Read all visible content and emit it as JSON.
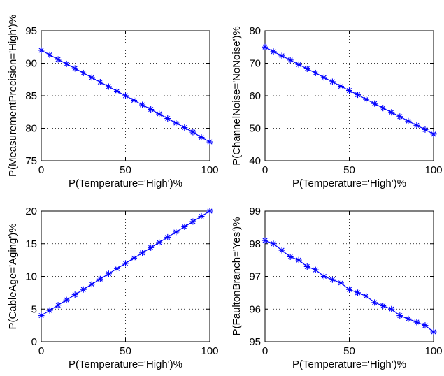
{
  "colors": {
    "series": "#0000ff",
    "axis": "#000000"
  },
  "chart_data": [
    {
      "type": "line",
      "xlabel": "P(Temperature='High')%",
      "ylabel": "P(MeasurementPrecision='High')%",
      "xlim": [
        0,
        100
      ],
      "ylim": [
        75,
        95
      ],
      "xticks": [
        0,
        50,
        100
      ],
      "yticks": [
        75,
        80,
        85,
        90,
        95
      ],
      "grid": true,
      "marker": "asterisk",
      "series": [
        {
          "x": [
            0,
            5,
            10,
            15,
            20,
            25,
            30,
            35,
            40,
            45,
            50,
            55,
            60,
            65,
            70,
            75,
            80,
            85,
            90,
            95,
            100
          ],
          "y": [
            92.0,
            91.3,
            90.6,
            89.9,
            89.2,
            88.5,
            87.8,
            87.1,
            86.4,
            85.7,
            85.0,
            84.3,
            83.6,
            82.9,
            82.2,
            81.5,
            80.8,
            80.1,
            79.4,
            78.6,
            77.9
          ]
        }
      ]
    },
    {
      "type": "line",
      "xlabel": "P(Temperature='High')%",
      "ylabel": "P(ChannelNoise='NoNoise')%",
      "xlim": [
        0,
        100
      ],
      "ylim": [
        40,
        80
      ],
      "xticks": [
        0,
        50,
        100
      ],
      "yticks": [
        40,
        50,
        60,
        70,
        80
      ],
      "grid": true,
      "marker": "asterisk",
      "series": [
        {
          "x": [
            0,
            5,
            10,
            15,
            20,
            25,
            30,
            35,
            40,
            45,
            50,
            55,
            60,
            65,
            70,
            75,
            80,
            85,
            90,
            95,
            100
          ],
          "y": [
            75.0,
            73.6,
            72.3,
            71.0,
            69.6,
            68.3,
            67.0,
            65.6,
            64.3,
            62.9,
            61.6,
            60.3,
            58.9,
            57.6,
            56.2,
            54.9,
            53.6,
            52.2,
            50.9,
            49.6,
            48.2
          ]
        }
      ]
    },
    {
      "type": "line",
      "xlabel": "P(Temperature='High')%",
      "ylabel": "P(CableAge='Aging')%",
      "xlim": [
        0,
        100
      ],
      "ylim": [
        0,
        20
      ],
      "xticks": [
        0,
        50,
        100
      ],
      "yticks": [
        0,
        5,
        10,
        15,
        20
      ],
      "grid": true,
      "marker": "asterisk",
      "series": [
        {
          "x": [
            0,
            5,
            10,
            15,
            20,
            25,
            30,
            35,
            40,
            45,
            50,
            55,
            60,
            65,
            70,
            75,
            80,
            85,
            90,
            95,
            100
          ],
          "y": [
            4.0,
            4.8,
            5.6,
            6.4,
            7.2,
            8.0,
            8.8,
            9.6,
            10.4,
            11.2,
            12.0,
            12.8,
            13.6,
            14.4,
            15.2,
            16.0,
            16.8,
            17.6,
            18.4,
            19.2,
            20.0
          ]
        }
      ]
    },
    {
      "type": "line",
      "xlabel": "P(Temperature='High')%",
      "ylabel": "P(FaultonBranch='Yes')%",
      "xlim": [
        0,
        100
      ],
      "ylim": [
        95,
        99
      ],
      "xticks": [
        0,
        50,
        100
      ],
      "yticks": [
        95,
        96,
        97,
        98,
        99
      ],
      "grid": true,
      "marker": "asterisk",
      "series": [
        {
          "x": [
            0,
            5,
            10,
            15,
            20,
            25,
            30,
            35,
            40,
            45,
            50,
            55,
            60,
            65,
            70,
            75,
            80,
            85,
            90,
            95,
            100
          ],
          "y": [
            98.1,
            98.0,
            97.8,
            97.6,
            97.5,
            97.3,
            97.2,
            97.0,
            96.9,
            96.8,
            96.6,
            96.5,
            96.4,
            96.2,
            96.1,
            96.0,
            95.8,
            95.7,
            95.6,
            95.5,
            95.3
          ]
        }
      ]
    }
  ]
}
